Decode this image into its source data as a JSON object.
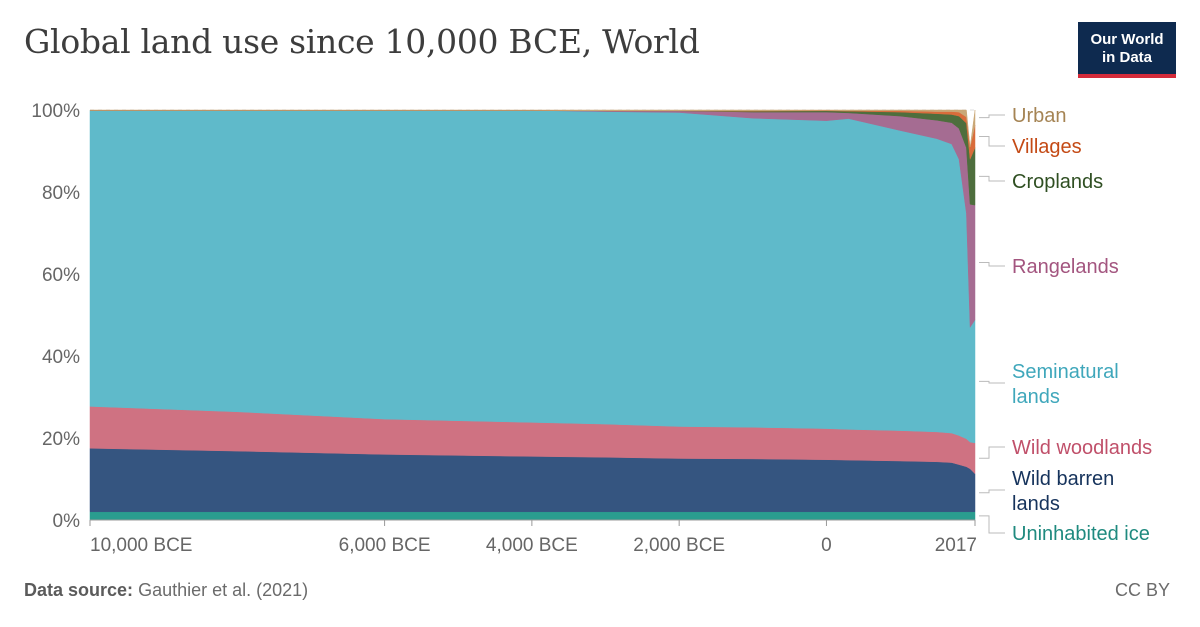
{
  "title": "Global land use since 10,000 BCE, World",
  "logo": {
    "line1": "Our World",
    "line2": "in Data"
  },
  "footer": {
    "source_label": "Data source:",
    "source_text": "Gauthier et al. (2021)",
    "license": "CC BY"
  },
  "chart_data": {
    "type": "area",
    "stacked": true,
    "x_unit": "year",
    "x": [
      -10000,
      -8000,
      -6000,
      -4000,
      -3000,
      -2000,
      -1000,
      0,
      300,
      1000,
      1500,
      1700,
      1800,
      1900,
      1950,
      2017
    ],
    "x_ticks": [
      {
        "value": -10000,
        "label": "10,000 BCE"
      },
      {
        "value": -6000,
        "label": "6,000 BCE"
      },
      {
        "value": -4000,
        "label": "4,000 BCE"
      },
      {
        "value": -2000,
        "label": "2,000 BCE"
      },
      {
        "value": 0,
        "label": "0"
      },
      {
        "value": 2017,
        "label": "2017"
      }
    ],
    "y_ticks": [
      "0%",
      "20%",
      "40%",
      "60%",
      "80%",
      "100%"
    ],
    "ylim": [
      0,
      100
    ],
    "y_unit": "%",
    "grid": true,
    "legend": "right",
    "series": [
      {
        "name": "Uninhabited ice",
        "color": "#2a9d8f",
        "label_color": "#1f8a7f",
        "values": [
          2,
          2,
          2,
          2,
          2,
          2,
          2,
          2,
          2,
          2,
          2,
          2,
          2,
          2,
          2,
          2
        ]
      },
      {
        "name": "Wild barren lands",
        "color": "#355580",
        "label_color": "#16335c",
        "values": [
          15.5,
          14.8,
          14,
          13.5,
          13.3,
          13,
          12.9,
          12.7,
          12.6,
          12.4,
          12.2,
          12,
          11.5,
          11,
          10.5,
          9.3
        ]
      },
      {
        "name": "Wild woodlands",
        "color": "#cf7282",
        "label_color": "#c0506a",
        "values": [
          10.2,
          9.6,
          8.6,
          8.3,
          8.1,
          7.8,
          7.7,
          7.6,
          7.5,
          7.4,
          7.3,
          7.2,
          7.1,
          6.8,
          6.5,
          7.5
        ]
      },
      {
        "name": "Seminatural lands",
        "color": "#5fbaca",
        "label_color": "#3fa7bb",
        "values": [
          72.2,
          73.5,
          75.3,
          76.1,
          76.2,
          76.6,
          75.4,
          75.1,
          75.8,
          73.2,
          71.5,
          70.5,
          67.4,
          55,
          28,
          30
        ]
      },
      {
        "name": "Rangelands",
        "color": "#a56c92",
        "label_color": "#a3557f",
        "values": [
          0,
          0,
          0,
          0,
          0.2,
          0.4,
          1.5,
          2.1,
          1.4,
          3.5,
          4.5,
          5.2,
          7.5,
          16,
          30,
          28
        ]
      },
      {
        "name": "Croplands",
        "color": "#4e6e3d",
        "label_color": "#2f4f22",
        "values": [
          0,
          0,
          0,
          0,
          0,
          0,
          0.2,
          0.3,
          0.4,
          1,
          1.6,
          2,
          3,
          6,
          11,
          14
        ]
      },
      {
        "name": "Villages",
        "color": "#d96c3b",
        "label_color": "#c44a15",
        "values": [
          0,
          0,
          0,
          0,
          0,
          0,
          0.1,
          0.1,
          0.1,
          0.3,
          0.5,
          0.7,
          1,
          1.5,
          3,
          5.5
        ]
      },
      {
        "name": "Urban",
        "color": "#c9a777",
        "label_color": "#a58454",
        "values": [
          0.1,
          0.1,
          0.1,
          0.1,
          0.2,
          0.2,
          0.2,
          0.1,
          0.2,
          0.2,
          0.4,
          0.4,
          0.5,
          1.7,
          0,
          3.7
        ]
      }
    ]
  }
}
